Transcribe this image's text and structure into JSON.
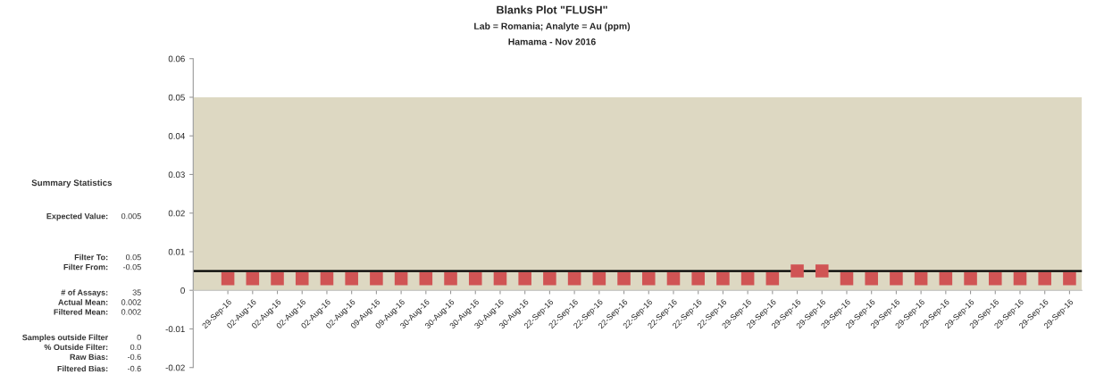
{
  "chart_data": {
    "type": "scatter",
    "title": "Blanks Plot \"FLUSH\"",
    "subtitle": "Lab = Romania; Analyte = Au (ppm)",
    "annotations": [
      "Hamama - Nov 2016",
      "Summary Statistics",
      "Expected Value:",
      "0.005",
      "Filter To:",
      "0.05",
      "Filter From:",
      "-0.05",
      "# of Assays:",
      "35",
      "Actual Mean:",
      "0.002",
      "Filtered Mean:",
      "0.002",
      "Samples outside Filter",
      "0",
      "% Outside Filter:",
      "0.0",
      "Raw Bias:",
      "-0.6",
      "Filtered Bias:",
      "-0.6"
    ],
    "categories": [
      "29-Sep-16",
      "02-Aug-16",
      "02-Aug-16",
      "02-Aug-16",
      "02-Aug-16",
      "02-Aug-16",
      "09-Aug-16",
      "09-Aug-16",
      "30-Aug-16",
      "30-Aug-16",
      "30-Aug-16",
      "30-Aug-16",
      "30-Aug-16",
      "22-Sep-16",
      "22-Sep-16",
      "22-Sep-16",
      "22-Sep-16",
      "22-Sep-16",
      "22-Sep-16",
      "22-Sep-16",
      "22-Sep-16",
      "29-Sep-16",
      "29-Sep-16",
      "29-Sep-16",
      "29-Sep-16",
      "29-Sep-16",
      "29-Sep-16",
      "29-Sep-16",
      "29-Sep-16",
      "29-Sep-16",
      "29-Sep-16",
      "29-Sep-16",
      "29-Sep-16",
      "29-Sep-16",
      "29-Sep-16"
    ],
    "series": [
      {
        "color": "#d05454",
        "values": [
          0.003,
          0.003,
          0.003,
          0.003,
          0.003,
          0.003,
          0.003,
          0.003,
          0.003,
          0.003,
          0.003,
          0.003,
          0.003,
          0.003,
          0.003,
          0.003,
          0.003,
          0.003,
          0.003,
          0.003,
          0.003,
          0.003,
          0.003,
          0.005,
          0.005,
          0.003,
          0.003,
          0.003,
          0.003,
          0.003,
          0.003,
          0.003,
          0.003,
          0.003,
          0.003
        ]
      }
    ],
    "marker": "square",
    "ylim": [
      -0.02,
      0.06
    ],
    "yticks": [
      -0.02,
      -0.01,
      0,
      0.01,
      0.02,
      0.03,
      0.04,
      0.05,
      0.06
    ],
    "ref_lines": [
      {
        "axis": "y",
        "value": 0.005,
        "color": "#000000"
      }
    ],
    "bands": [
      {
        "axis": "y",
        "from": 0,
        "to": 0.05,
        "color": "#ddd8c2"
      }
    ],
    "grid": false,
    "legend": false
  }
}
